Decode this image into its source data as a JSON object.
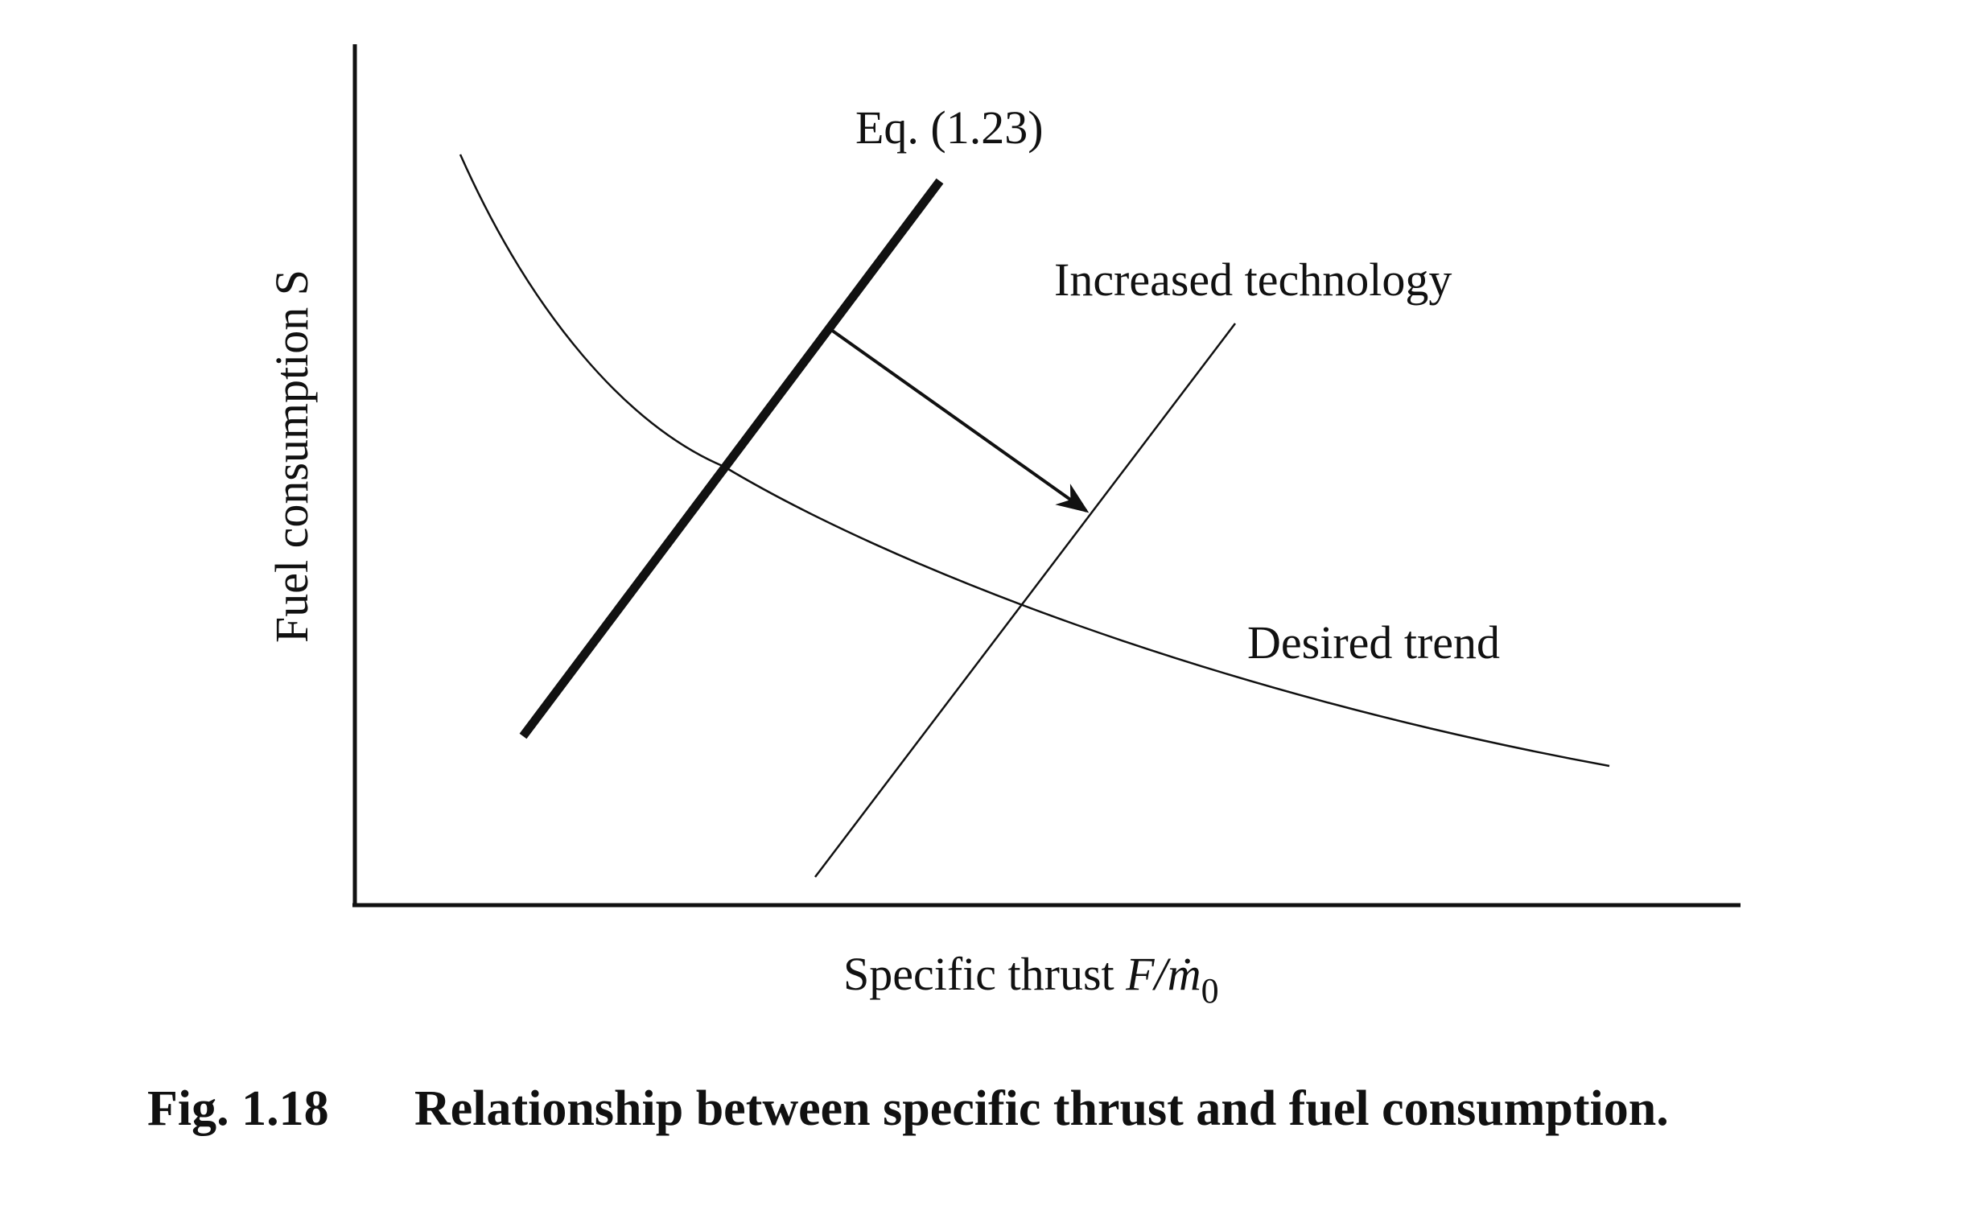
{
  "figure": {
    "caption_number": "Fig. 1.18",
    "caption_text": "Relationship between specific thrust and fuel consumption.",
    "y_axis_label": "Fuel consumption S",
    "x_axis_label": {
      "text": "Specific thrust ",
      "symbol_f": "F",
      "slash": "/",
      "symbol_m": "ṁ",
      "subscript": "0"
    },
    "annotations": {
      "equation_line": "Eq. (1.23)",
      "technology_line": "Increased technology",
      "trend_curve": "Desired trend"
    },
    "colors": {
      "ink": "#111111",
      "background": "#ffffff"
    }
  }
}
